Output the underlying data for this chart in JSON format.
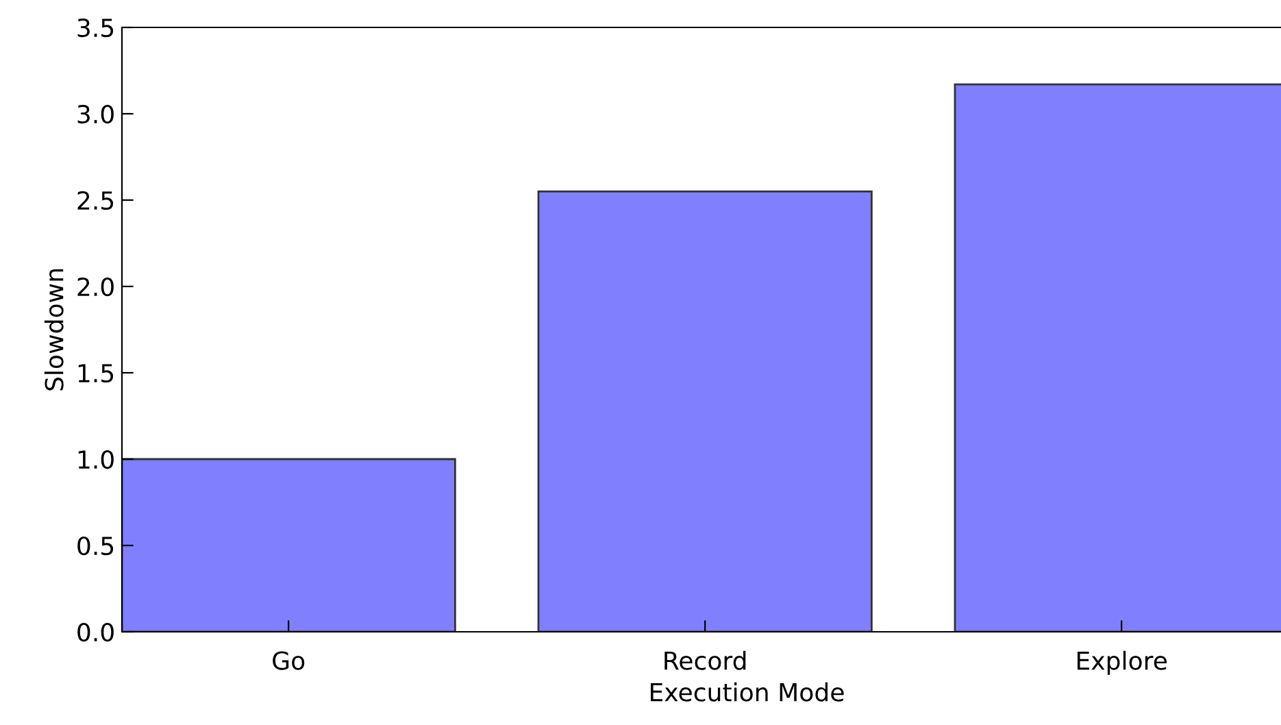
{
  "chart_data": {
    "type": "bar",
    "xlabel": "Execution Mode",
    "ylabel": "Slowdown",
    "categories": [
      "Go",
      "Record",
      "Explore"
    ],
    "values": [
      1.0,
      2.55,
      3.17
    ],
    "color": "#8080ff",
    "ylim": [
      0,
      3.5
    ],
    "yticks": [
      {
        "value": 0,
        "label": "0.0"
      },
      {
        "value": 0.5,
        "label": "0.5"
      },
      {
        "value": 1,
        "label": "1.0"
      },
      {
        "value": 1.5,
        "label": "1.5"
      },
      {
        "value": 2,
        "label": "2.0"
      },
      {
        "value": 2.5,
        "label": "2.5"
      },
      {
        "value": 3,
        "label": "3.0"
      },
      {
        "value": 3.5,
        "label": "3.5"
      }
    ],
    "grid": false
  }
}
